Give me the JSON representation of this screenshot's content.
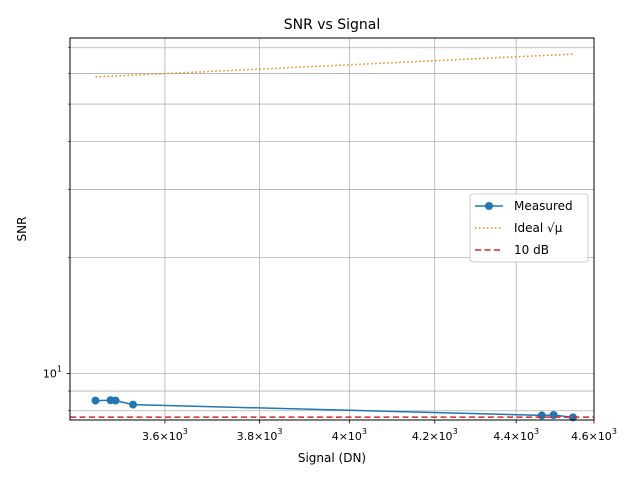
{
  "chart_data": {
    "type": "line",
    "title": "SNR vs Signal",
    "xlabel": "Signal (DN)",
    "ylabel": "SNR",
    "xscale": "log",
    "yscale": "log",
    "xlim": [
      3410,
      4600
    ],
    "ylim": [
      7.57,
      74.2
    ],
    "grid": true,
    "grid_which": "both",
    "legend_position": "center-right",
    "x_ticks": [
      {
        "value": 3600,
        "mant": "3.6",
        "exp": "3"
      },
      {
        "value": 3800,
        "mant": "3.8",
        "exp": "3"
      },
      {
        "value": 4000,
        "mant": "4",
        "exp": "3"
      },
      {
        "value": 4200,
        "mant": "4.2",
        "exp": "3"
      },
      {
        "value": 4400,
        "mant": "4.4",
        "exp": "3"
      },
      {
        "value": 4600,
        "mant": "4.6",
        "exp": "3"
      }
    ],
    "y_ticks": [
      {
        "value": 10,
        "mant": "10",
        "exp": "1"
      }
    ],
    "x_ticks_mantissa_sep": "×",
    "y_tick_base": "10",
    "series": [
      {
        "name": "Measured",
        "style": "solid",
        "marker": "circle",
        "color": "#1f77b4",
        "x": [
          3460,
          3490,
          3500,
          3535,
          4465,
          4495,
          4545
        ],
        "y": [
          8.5,
          8.52,
          8.5,
          8.3,
          7.78,
          7.8,
          7.69
        ]
      },
      {
        "name": "Ideal √μ",
        "style": "dotted",
        "marker": "none",
        "color": "#ff7f0e",
        "x": [
          3460,
          4545
        ],
        "y": [
          58.8,
          67.4
        ]
      },
      {
        "name": "10 dB",
        "style": "dashed",
        "marker": "none",
        "color": "#d62728",
        "hline": 7.7
      }
    ]
  }
}
